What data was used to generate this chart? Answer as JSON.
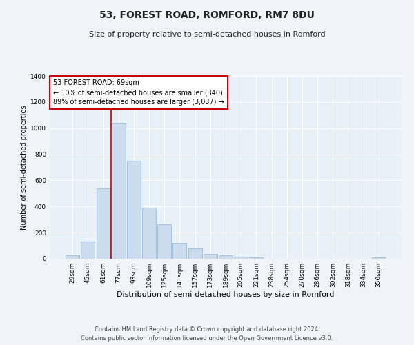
{
  "title": "53, FOREST ROAD, ROMFORD, RM7 8DU",
  "subtitle": "Size of property relative to semi-detached houses in Romford",
  "xlabel": "Distribution of semi-detached houses by size in Romford",
  "ylabel": "Number of semi-detached properties",
  "categories": [
    "29sqm",
    "45sqm",
    "61sqm",
    "77sqm",
    "93sqm",
    "109sqm",
    "125sqm",
    "141sqm",
    "157sqm",
    "173sqm",
    "189sqm",
    "205sqm",
    "221sqm",
    "238sqm",
    "254sqm",
    "270sqm",
    "286sqm",
    "302sqm",
    "318sqm",
    "334sqm",
    "350sqm"
  ],
  "values": [
    25,
    130,
    540,
    1040,
    750,
    390,
    265,
    120,
    80,
    35,
    28,
    15,
    8,
    0,
    0,
    0,
    0,
    0,
    0,
    0,
    10
  ],
  "bar_color": "#ccdcee",
  "bar_edge_color": "#9bbcd8",
  "vline_color": "#cc0000",
  "vline_pos": 2.5,
  "annotation_title": "53 FOREST ROAD: 69sqm",
  "annotation_line1": "← 10% of semi-detached houses are smaller (340)",
  "annotation_line2": "89% of semi-detached houses are larger (3,037) →",
  "annotation_box_color": "#cc0000",
  "ylim": [
    0,
    1400
  ],
  "yticks": [
    0,
    200,
    400,
    600,
    800,
    1000,
    1200,
    1400
  ],
  "footnote1": "Contains HM Land Registry data © Crown copyright and database right 2024.",
  "footnote2": "Contains public sector information licensed under the Open Government Licence v3.0.",
  "bg_color": "#f0f4f8",
  "plot_bg_color": "#e8f0f8",
  "grid_color": "#ffffff",
  "title_fontsize": 10,
  "subtitle_fontsize": 8,
  "xlabel_fontsize": 8,
  "ylabel_fontsize": 7,
  "tick_fontsize": 6.5,
  "annotation_fontsize": 7,
  "footnote_fontsize": 6
}
